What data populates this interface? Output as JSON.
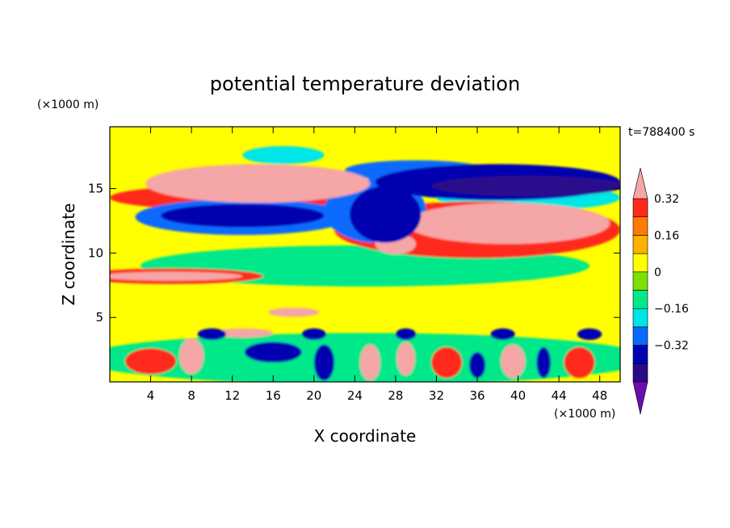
{
  "chart_data": {
    "type": "heatmap",
    "title": "potential temperature deviation",
    "time_label": "t=788400 s",
    "xlabel": "X coordinate",
    "ylabel": "Z coordinate",
    "x_unit": "(×1000 m)",
    "y_unit": "(×1000 m)",
    "xlim": [
      0,
      50
    ],
    "ylim": [
      0,
      19.8
    ],
    "x_ticks": [
      4,
      8,
      12,
      16,
      20,
      24,
      28,
      32,
      36,
      40,
      44,
      48
    ],
    "y_ticks": [
      5,
      10,
      15
    ],
    "colorbar": {
      "levels": [
        -0.48,
        -0.4,
        -0.32,
        -0.24,
        -0.16,
        -0.08,
        0,
        0.08,
        0.16,
        0.24,
        0.32,
        0.4
      ],
      "labels": [
        "0.32",
        "0.16",
        "0",
        "−0.16",
        "−0.32"
      ],
      "label_values": [
        0.32,
        0.16,
        0,
        -0.16,
        -0.32
      ],
      "colors": [
        "#6a0dad",
        "#2a0a8a",
        "#0000b0",
        "#0a6aff",
        "#00e5e5",
        "#00e88a",
        "#7ee000",
        "#ffff00",
        "#ffb000",
        "#ff7a00",
        "#ff2a1a",
        "#f5a6a6"
      ],
      "extend": "both"
    },
    "regions": [
      {
        "value": 0.45,
        "cx": 14.5,
        "cy": 15.6,
        "rx": 8.5,
        "ry": 0.9
      },
      {
        "value": 0.35,
        "cx": 14.5,
        "cy": 15.4,
        "rx": 11,
        "ry": 1.5
      },
      {
        "value": 0.28,
        "cx": 13,
        "cy": 14.3,
        "rx": 13,
        "ry": 1.0
      },
      {
        "value": 0.45,
        "cx": 40,
        "cy": 12.6,
        "rx": 6,
        "ry": 1.0
      },
      {
        "value": 0.35,
        "cx": 39,
        "cy": 12.3,
        "rx": 10,
        "ry": 1.6
      },
      {
        "value": 0.28,
        "cx": 36,
        "cy": 11.8,
        "rx": 14,
        "ry": 2.2
      },
      {
        "value": 0.35,
        "cx": 28,
        "cy": 10.7,
        "rx": 2,
        "ry": 0.8
      },
      {
        "value": 0.45,
        "cx": 6,
        "cy": 8.2,
        "rx": 7,
        "ry": 0.35
      },
      {
        "value": 0.3,
        "cx": 6,
        "cy": 8.2,
        "rx": 9,
        "ry": 0.6
      },
      {
        "value": -0.4,
        "cx": 13,
        "cy": 12.9,
        "rx": 8,
        "ry": 0.9
      },
      {
        "value": -0.3,
        "cx": 13,
        "cy": 12.8,
        "rx": 10.5,
        "ry": 1.4
      },
      {
        "value": -0.4,
        "cx": 27,
        "cy": 13.0,
        "rx": 3.5,
        "ry": 2.2
      },
      {
        "value": -0.3,
        "cx": 26,
        "cy": 13.3,
        "rx": 5,
        "ry": 2.5
      },
      {
        "value": -0.46,
        "cx": 41,
        "cy": 15.2,
        "rx": 9.5,
        "ry": 0.8
      },
      {
        "value": -0.4,
        "cx": 38,
        "cy": 15.5,
        "rx": 12,
        "ry": 1.4
      },
      {
        "value": -0.32,
        "cx": 30,
        "cy": 16.4,
        "rx": 7,
        "ry": 0.8
      },
      {
        "value": -0.18,
        "cx": 17,
        "cy": 17.6,
        "rx": 4,
        "ry": 0.7
      },
      {
        "value": -0.18,
        "cx": 41,
        "cy": 14.3,
        "rx": 9,
        "ry": 1.0
      },
      {
        "value": -0.1,
        "cx": 25,
        "cy": 9.0,
        "rx": 22,
        "ry": 1.6
      },
      {
        "value": -0.1,
        "cx": 25,
        "cy": 1.8,
        "rx": 28,
        "ry": 2.0
      },
      {
        "value": 0.3,
        "cx": 4,
        "cy": 1.6,
        "rx": 2.5,
        "ry": 1.0
      },
      {
        "value": 0.35,
        "cx": 8,
        "cy": 2.0,
        "rx": 1.2,
        "ry": 1.4
      },
      {
        "value": -0.4,
        "cx": 16,
        "cy": 2.3,
        "rx": 2.8,
        "ry": 0.8
      },
      {
        "value": -0.4,
        "cx": 21,
        "cy": 1.5,
        "rx": 1.0,
        "ry": 1.4
      },
      {
        "value": 0.35,
        "cx": 25.5,
        "cy": 1.5,
        "rx": 1.0,
        "ry": 1.4
      },
      {
        "value": 0.35,
        "cx": 29,
        "cy": 1.8,
        "rx": 0.9,
        "ry": 1.3
      },
      {
        "value": 0.3,
        "cx": 33,
        "cy": 1.5,
        "rx": 1.5,
        "ry": 1.2
      },
      {
        "value": -0.4,
        "cx": 36,
        "cy": 1.3,
        "rx": 0.8,
        "ry": 1.0
      },
      {
        "value": 0.35,
        "cx": 39.5,
        "cy": 1.6,
        "rx": 1.2,
        "ry": 1.3
      },
      {
        "value": -0.4,
        "cx": 42.5,
        "cy": 1.5,
        "rx": 0.7,
        "ry": 1.2
      },
      {
        "value": 0.3,
        "cx": 46,
        "cy": 1.5,
        "rx": 1.5,
        "ry": 1.2
      },
      {
        "value": 0.4,
        "cx": 13,
        "cy": 3.8,
        "rx": 3,
        "ry": 0.35
      },
      {
        "value": 0.45,
        "cx": 18,
        "cy": 5.4,
        "rx": 2.5,
        "ry": 0.35
      },
      {
        "value": -0.4,
        "cx": 10,
        "cy": 3.7,
        "rx": 1.4,
        "ry": 0.45
      },
      {
        "value": -0.4,
        "cx": 20,
        "cy": 3.7,
        "rx": 1.2,
        "ry": 0.45
      },
      {
        "value": -0.4,
        "cx": 29,
        "cy": 3.7,
        "rx": 1.0,
        "ry": 0.45
      },
      {
        "value": -0.4,
        "cx": 38.5,
        "cy": 3.7,
        "rx": 1.2,
        "ry": 0.45
      },
      {
        "value": -0.4,
        "cx": 47,
        "cy": 3.7,
        "rx": 1.2,
        "ry": 0.45
      }
    ]
  }
}
